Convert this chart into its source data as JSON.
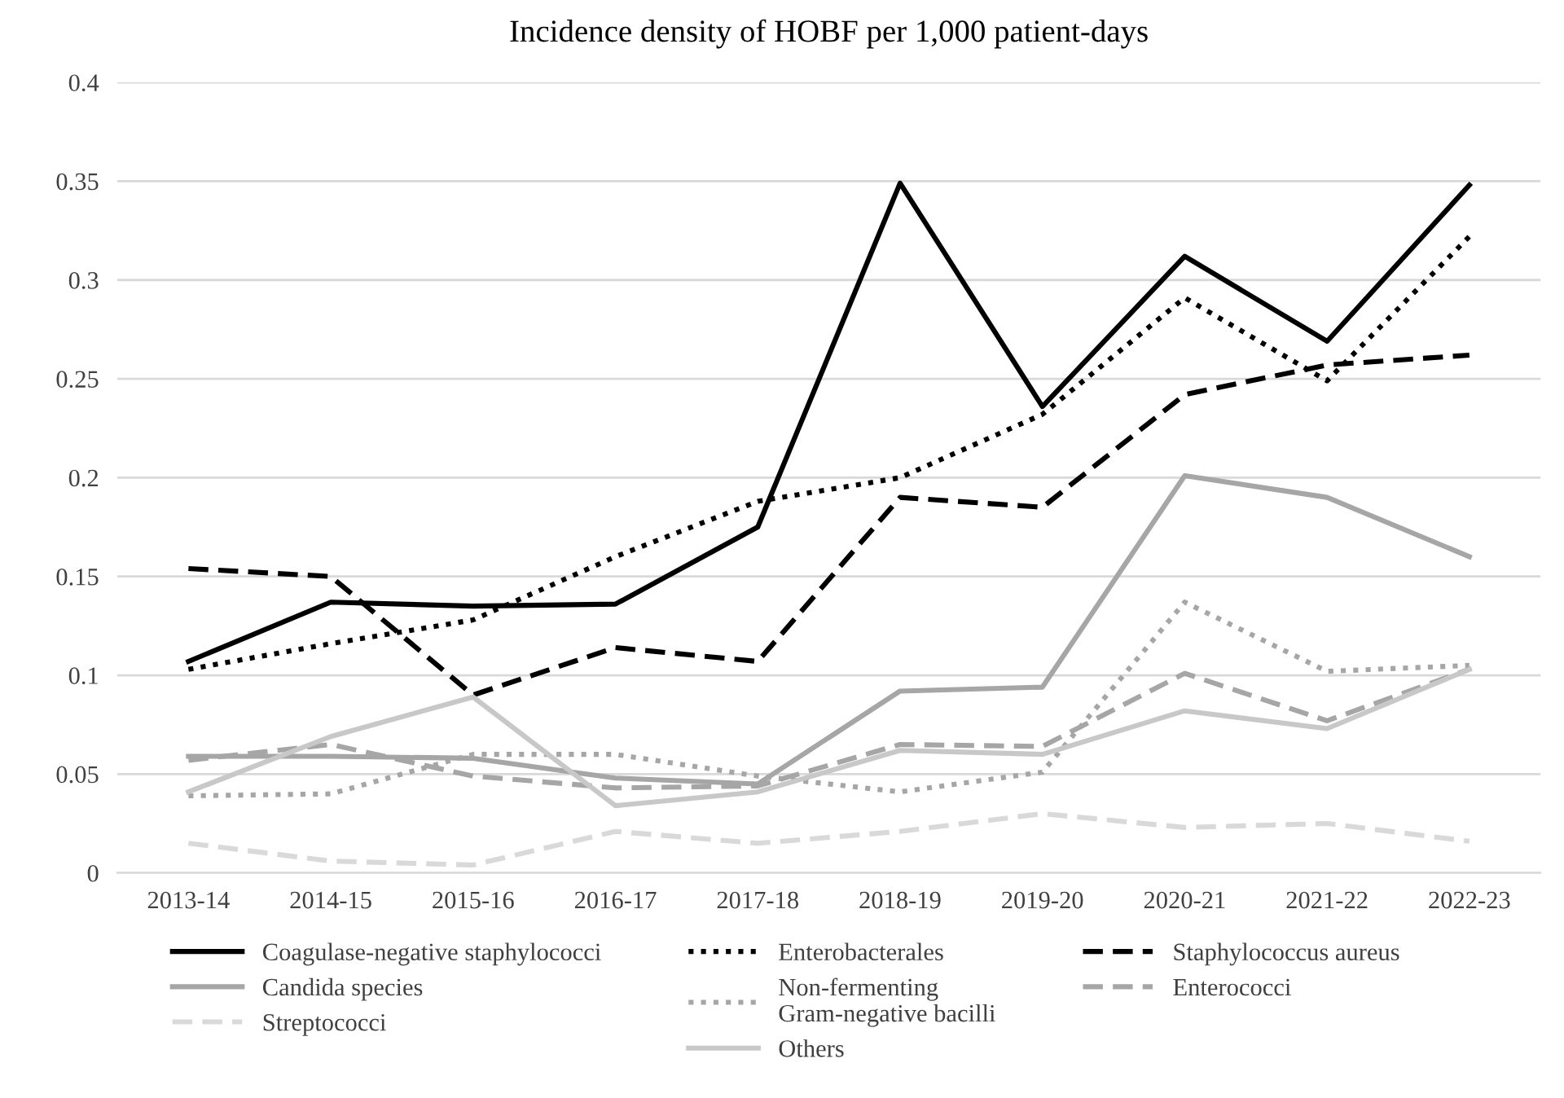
{
  "chart_data": {
    "type": "line",
    "title": "Incidence density of HOBF per 1,000 patient-days",
    "categories": [
      "2013-14",
      "2014-15",
      "2015-16",
      "2016-17",
      "2017-18",
      "2018-19",
      "2019-20",
      "2020-21",
      "2021-22",
      "2022-23"
    ],
    "ylim": [
      0,
      0.4
    ],
    "yticks": [
      0,
      0.05,
      0.1,
      0.15,
      0.2,
      0.25,
      0.3,
      0.35,
      0.4
    ],
    "grid": "y",
    "legend": "bottom",
    "marker": "none",
    "series": [
      {
        "name": "Coagulase-negative staphylococci",
        "color": "#000000",
        "line_style": "solid",
        "values": [
          0.107,
          0.137,
          0.135,
          0.136,
          0.175,
          0.349,
          0.236,
          0.312,
          0.269,
          0.348
        ]
      },
      {
        "name": "Enterobacterales",
        "color": "#000000",
        "line_style": "dotted",
        "values": [
          0.103,
          0.116,
          0.128,
          0.16,
          0.188,
          0.2,
          0.232,
          0.291,
          0.249,
          0.322
        ]
      },
      {
        "name": "Staphylococcus aureus",
        "color": "#000000",
        "line_style": "dashed",
        "values": [
          0.154,
          0.15,
          0.09,
          0.114,
          0.107,
          0.19,
          0.185,
          0.242,
          0.257,
          0.262
        ]
      },
      {
        "name": "Candida species",
        "color": "#a6a6a6",
        "line_style": "solid",
        "values": [
          0.059,
          0.059,
          0.058,
          0.048,
          0.045,
          0.092,
          0.094,
          0.201,
          0.19,
          0.16
        ]
      },
      {
        "name": "Non-fermenting\nGram-negative bacilli",
        "color": "#a6a6a6",
        "line_style": "dotted",
        "values": [
          0.039,
          0.04,
          0.06,
          0.06,
          0.049,
          0.041,
          0.051,
          0.137,
          0.102,
          0.105
        ]
      },
      {
        "name": "Enterococci",
        "color": "#a6a6a6",
        "line_style": "dashed",
        "values": [
          0.057,
          0.065,
          0.049,
          0.043,
          0.044,
          0.065,
          0.064,
          0.101,
          0.077,
          0.103
        ]
      },
      {
        "name": "Streptococci",
        "color": "#d9d9d9",
        "line_style": "dashed",
        "values": [
          0.015,
          0.006,
          0.004,
          0.021,
          0.015,
          0.021,
          0.03,
          0.023,
          0.025,
          0.016
        ]
      },
      {
        "name": "Others",
        "color": "#c8c8c8",
        "line_style": "solid",
        "values": [
          0.041,
          0.069,
          0.089,
          0.034,
          0.041,
          0.062,
          0.06,
          0.082,
          0.073,
          0.103
        ]
      }
    ]
  }
}
